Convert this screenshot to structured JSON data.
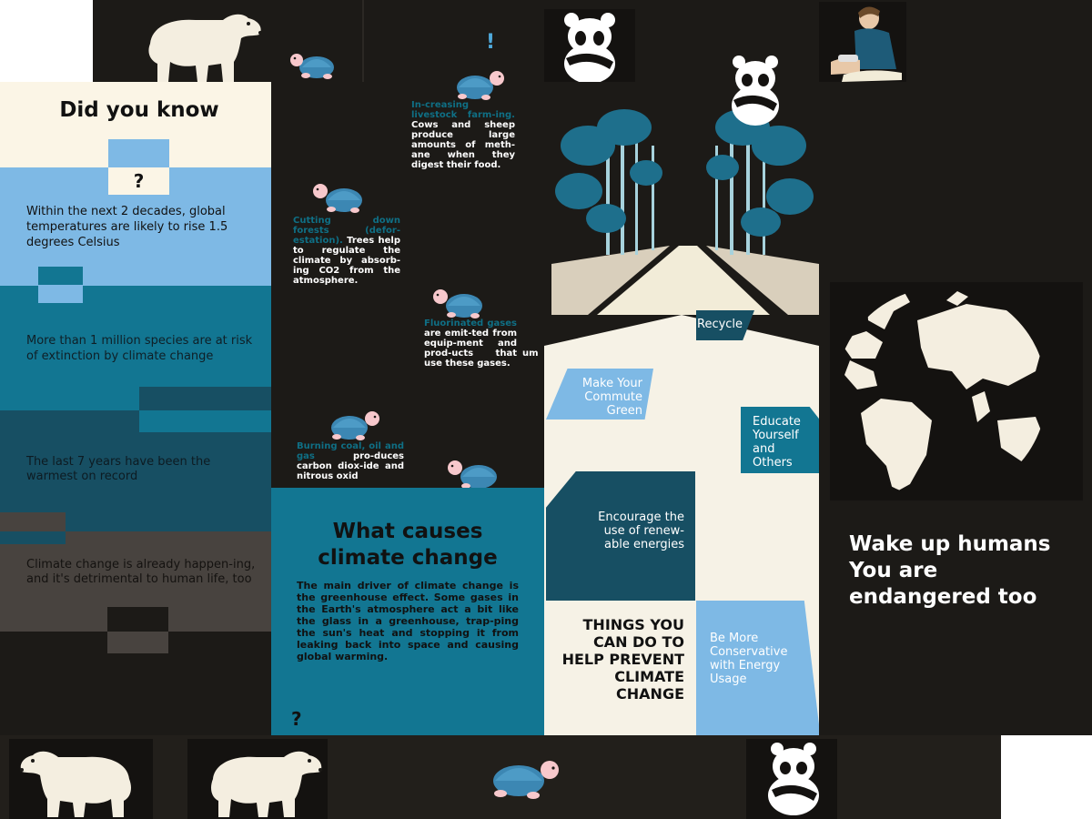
{
  "colors": {
    "dark": "#1c1a17",
    "cream": "#fbf5e6",
    "light_blue": "#7eb9e5",
    "teal": "#0f6f85",
    "deep_teal": "#174f63",
    "brown_grey": "#48433f"
  },
  "left_panel": {
    "title": "Did you know",
    "question_mark": "?",
    "facts": [
      "Within the next 2 decades, global temperatures are likely to rise 1.5 degrees Celsius",
      "More than 1 million species are at risk of extinction by climate change",
      "The last 7 years have been the warmest on record",
      "Climate change is already happen-ing, and it's detrimental to human life, too"
    ]
  },
  "middle_top": {
    "exclamation": "!",
    "livestock": {
      "highlight": "In-creasing livestock farm-ing.",
      "text": " Cows and sheep produce large amounts of meth-ane when they digest their food."
    },
    "forests": {
      "highlight": "Cutting down forests (defor-estation).",
      "text": " Trees help to regulate the climate by absorb-ing CO2 from the atmosphere."
    },
    "fluorinated": {
      "highlight": "Fluorinated gases",
      "text": " are emit-ted from equip-ment and prod-ucts that use these gases."
    },
    "fossil": {
      "highlight": "Burning coal, oil and gas",
      "text": " pro-duces carbon diox-ide and nitrous oxid"
    },
    "stray_text": "um"
  },
  "causes": {
    "title": "What causes climate change",
    "body": "The main driver of climate change is the greenhouse effect. Some gases in the Earth's atmosphere act a bit like the glass in a greenhouse, trap-ping the sun's heat and stopping it from leaking back into space and causing global warming.",
    "question_mark": "?"
  },
  "actions": {
    "recycle": "Recycle",
    "commute": "Make Your Commute Green",
    "educate": "Educate Yourself and Others",
    "renewable": "Encourage the use of renew-able energies",
    "conservative": "Be More Conservative with Energy Usage",
    "heading": "THINGS YOU CAN DO TO HELP PREVENT CLIMATE CHANGE"
  },
  "right_panel": {
    "headline": "Wake up humans You are endangered too",
    "globe_icon": "world-map-globe-icon"
  },
  "illustrations": [
    "polar-bear-icon",
    "turtle-icon",
    "panda-icon",
    "person-sitting-icon",
    "forest-path-illustration"
  ]
}
